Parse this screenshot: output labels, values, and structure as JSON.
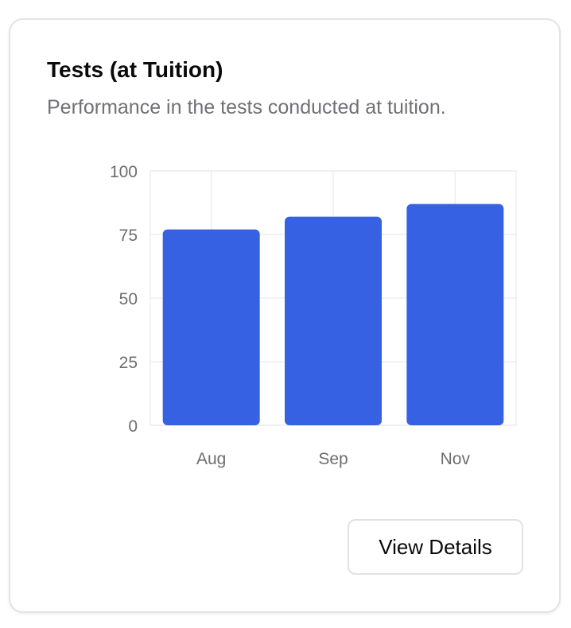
{
  "card": {
    "title": "Tests (at Tuition)",
    "subtitle": "Performance in the tests conducted at tuition.",
    "button_label": "View Details"
  },
  "colors": {
    "bar": "#3761e3",
    "grid": "#eeeeee",
    "tick_text": "#6d6d73"
  },
  "chart_data": {
    "type": "bar",
    "categories": [
      "Aug",
      "Sep",
      "Nov"
    ],
    "values": [
      77,
      82,
      87
    ],
    "title": "",
    "xlabel": "",
    "ylabel": "",
    "ylim": [
      0,
      100
    ],
    "yticks": [
      "0",
      "25",
      "50",
      "75",
      "100"
    ],
    "grid": true
  }
}
